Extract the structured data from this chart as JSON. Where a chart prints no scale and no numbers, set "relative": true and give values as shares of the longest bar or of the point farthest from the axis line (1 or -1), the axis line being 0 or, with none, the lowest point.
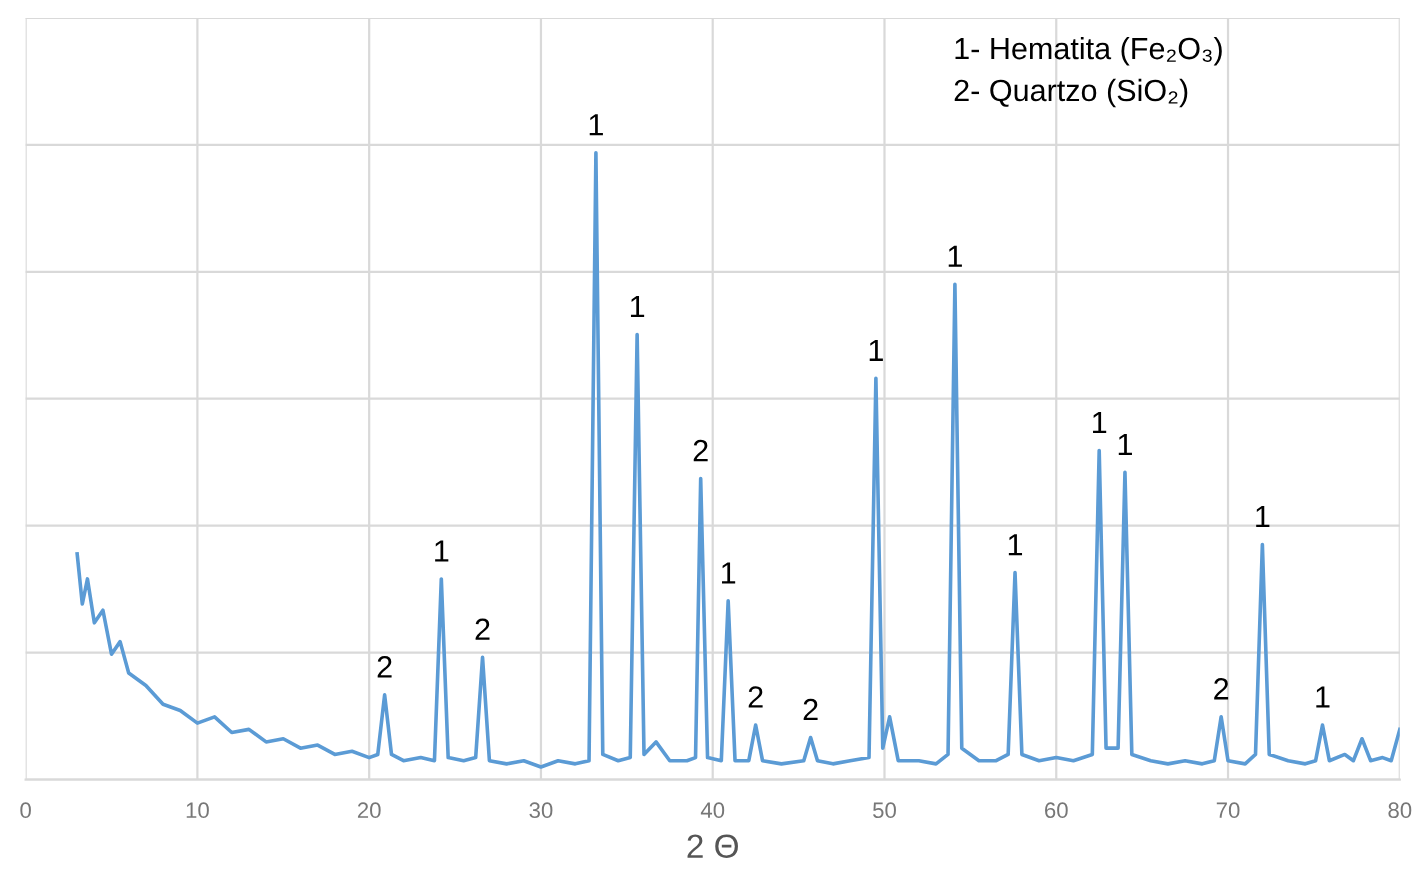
{
  "chart_data": {
    "type": "line",
    "relative": true,
    "xlabel": "2 Θ",
    "xlim": [
      0,
      80
    ],
    "xticks": [
      0,
      10,
      20,
      30,
      40,
      50,
      60,
      70,
      80
    ],
    "grid": true,
    "marker": "none",
    "line_style": "solid",
    "series": [
      {
        "color": "#5b9bd5",
        "x": [
          3.0,
          3.3,
          3.6,
          4.0,
          4.5,
          5.0,
          5.5,
          6.0,
          7.0,
          8.0,
          9.0,
          10.0,
          11.0,
          12.0,
          13.0,
          14.0,
          15.0,
          16.0,
          17.0,
          18.0,
          19.0,
          20.0,
          20.5,
          20.9,
          21.3,
          22.0,
          23.0,
          23.8,
          24.2,
          24.6,
          25.5,
          26.2,
          26.6,
          27.0,
          28.0,
          29.0,
          30.0,
          31.0,
          32.0,
          32.8,
          33.2,
          33.6,
          34.5,
          35.2,
          35.6,
          36.0,
          36.7,
          37.5,
          38.5,
          39.0,
          39.3,
          39.7,
          40.5,
          40.9,
          41.3,
          42.1,
          42.5,
          42.9,
          44.0,
          45.3,
          45.7,
          46.1,
          47.0,
          48.0,
          49.1,
          49.5,
          49.9,
          50.3,
          50.8,
          52.0,
          53.0,
          53.7,
          54.1,
          54.5,
          55.5,
          56.5,
          57.2,
          57.6,
          58.0,
          59.0,
          60.0,
          61.0,
          62.1,
          62.5,
          62.9,
          63.6,
          64.0,
          64.4,
          65.5,
          66.5,
          67.5,
          68.5,
          69.2,
          69.6,
          70.0,
          71.0,
          71.6,
          72.0,
          72.4,
          73.5,
          74.5,
          75.1,
          75.5,
          75.9,
          76.8,
          77.3,
          77.8,
          78.3,
          79.0,
          79.5,
          80.0
        ],
        "values": [
          0.36,
          0.28,
          0.32,
          0.25,
          0.27,
          0.2,
          0.22,
          0.17,
          0.15,
          0.12,
          0.11,
          0.09,
          0.1,
          0.075,
          0.08,
          0.06,
          0.065,
          0.05,
          0.055,
          0.04,
          0.045,
          0.035,
          0.04,
          0.135,
          0.04,
          0.03,
          0.035,
          0.03,
          0.32,
          0.035,
          0.03,
          0.035,
          0.195,
          0.03,
          0.025,
          0.03,
          0.02,
          0.03,
          0.025,
          0.03,
          1.0,
          0.04,
          0.03,
          0.035,
          0.71,
          0.04,
          0.06,
          0.03,
          0.03,
          0.035,
          0.48,
          0.035,
          0.03,
          0.285,
          0.03,
          0.03,
          0.087,
          0.03,
          0.025,
          0.03,
          0.067,
          0.03,
          0.025,
          0.03,
          0.035,
          0.64,
          0.05,
          0.1,
          0.03,
          0.03,
          0.025,
          0.04,
          0.79,
          0.05,
          0.03,
          0.03,
          0.04,
          0.33,
          0.04,
          0.03,
          0.035,
          0.03,
          0.04,
          0.525,
          0.05,
          0.05,
          0.49,
          0.04,
          0.03,
          0.025,
          0.03,
          0.025,
          0.03,
          0.1,
          0.03,
          0.025,
          0.04,
          0.375,
          0.04,
          0.03,
          0.025,
          0.03,
          0.087,
          0.03,
          0.04,
          0.03,
          0.065,
          0.03,
          0.035,
          0.03,
          0.08
        ]
      }
    ],
    "annotations": [
      "1- Hematita (Fe₂O₃)",
      "2- Quartzo (SiO₂)",
      {
        "text": "2",
        "x": 20.9,
        "y": 0.135
      },
      {
        "text": "1",
        "x": 24.2,
        "y": 0.32
      },
      {
        "text": "2",
        "x": 26.6,
        "y": 0.195
      },
      {
        "text": "1",
        "x": 33.2,
        "y": 1.0
      },
      {
        "text": "1",
        "x": 35.6,
        "y": 0.71
      },
      {
        "text": "2",
        "x": 39.3,
        "y": 0.48
      },
      {
        "text": "1",
        "x": 40.9,
        "y": 0.285
      },
      {
        "text": "2",
        "x": 42.5,
        "y": 0.087
      },
      {
        "text": "2",
        "x": 45.7,
        "y": 0.067
      },
      {
        "text": "1",
        "x": 49.5,
        "y": 0.64
      },
      {
        "text": "1",
        "x": 54.1,
        "y": 0.79
      },
      {
        "text": "1",
        "x": 57.6,
        "y": 0.33
      },
      {
        "text": "1",
        "x": 62.5,
        "y": 0.525
      },
      {
        "text": "1",
        "x": 64.0,
        "y": 0.49
      },
      {
        "text": "2",
        "x": 69.6,
        "y": 0.1
      },
      {
        "text": "1",
        "x": 72.0,
        "y": 0.375
      },
      {
        "text": "1",
        "x": 75.5,
        "y": 0.087
      }
    ]
  }
}
